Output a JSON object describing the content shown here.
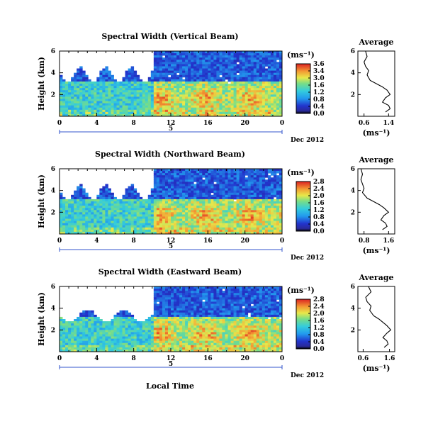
{
  "figure": {
    "xlabel": "Local Time",
    "date_label": "Dec 2012",
    "day_marker": "5"
  },
  "colorbar_unit": "(ms⁻¹)",
  "average_unit": "(ms⁻¹)",
  "average_title": "Average",
  "colors": {
    "map_low": "#2233cc",
    "map_mid": "#33ccdd",
    "map_high_mid": "#e8e84a",
    "map_high": "#dd2222",
    "marker_line": "#3355cc"
  },
  "chart_data": [
    {
      "type": "heatmap",
      "title": "Spectral Width (Vertical Beam)",
      "ylabel": "Height (km)",
      "xlabel": "",
      "x_ticks": [
        "0",
        "4",
        "8",
        "12",
        "16",
        "20",
        "0"
      ],
      "y_ticks": [
        "6",
        "4",
        "2"
      ],
      "x_range_hours": [
        0,
        24
      ],
      "y_range_km": [
        0,
        6
      ],
      "colorbar_ticks": [
        "3.6",
        "3.4",
        "3.0",
        "1.6",
        "1.2",
        "0.8",
        "0.4",
        "0.0"
      ],
      "colorbar_range": [
        0.0,
        3.6
      ],
      "description_levels": {
        "upper_region_max_height_km": 4.5,
        "peak_values": [
          3.2,
          3.4
        ]
      }
    },
    {
      "type": "heatmap",
      "title": "Spectral Width (Northward Beam)",
      "ylabel": "Height (km)",
      "xlabel": "",
      "x_ticks": [
        "0",
        "4",
        "8",
        "12",
        "16",
        "20",
        "0"
      ],
      "y_ticks": [
        "6",
        "4",
        "2"
      ],
      "x_range_hours": [
        0,
        24
      ],
      "y_range_km": [
        0,
        6
      ],
      "colorbar_ticks": [
        "2.8",
        "2.4",
        "2.0",
        "1.6",
        "1.2",
        "0.8",
        "0.4",
        "0.0"
      ],
      "colorbar_range": [
        0.0,
        2.8
      ]
    },
    {
      "type": "heatmap",
      "title": "Spectral Width (Eastward Beam)",
      "ylabel": "Height (km)",
      "xlabel": "Local Time",
      "x_ticks": [
        "0",
        "4",
        "8",
        "12",
        "16",
        "20",
        "0"
      ],
      "y_ticks": [
        "6",
        "4",
        "2"
      ],
      "x_range_hours": [
        0,
        24
      ],
      "y_range_km": [
        0,
        6
      ],
      "colorbar_ticks": [
        "2.8",
        "2.4",
        "2.0",
        "1.6",
        "1.2",
        "0.8",
        "0.4",
        "0.0"
      ],
      "colorbar_range": [
        0.0,
        2.8
      ]
    },
    {
      "type": "line",
      "title": "Average",
      "xlabel": "(ms⁻¹)",
      "x_ticks": [
        "0.6",
        "1.4"
      ],
      "xlim": [
        0.4,
        1.6
      ],
      "y_ticks": [
        "6",
        "4",
        "2"
      ],
      "ylim": [
        0,
        6
      ],
      "series": [
        {
          "x": [
            0.65,
            0.7,
            0.6,
            0.65,
            0.75,
            0.7,
            0.8,
            1.0,
            1.2,
            1.35,
            1.45,
            1.3,
            1.2,
            1.4,
            1.45,
            1.3
          ],
          "y": [
            6.0,
            5.5,
            5.0,
            4.6,
            4.2,
            3.8,
            3.3,
            3.0,
            2.7,
            2.4,
            2.0,
            1.7,
            1.3,
            1.0,
            0.7,
            0.4
          ]
        }
      ]
    },
    {
      "type": "line",
      "title": "Average",
      "xlabel": "(ms⁻¹)",
      "x_ticks": [
        "0.8",
        "1.6"
      ],
      "xlim": [
        0.6,
        1.8
      ],
      "y_ticks": [
        "6",
        "4",
        "2"
      ],
      "ylim": [
        0,
        6
      ],
      "series": [
        {
          "x": [
            0.7,
            0.75,
            0.7,
            0.75,
            0.8,
            0.75,
            0.9,
            1.1,
            1.3,
            1.45,
            1.6,
            1.45,
            1.35,
            1.5,
            1.55,
            1.4
          ],
          "y": [
            6.0,
            5.5,
            5.0,
            4.6,
            4.2,
            3.8,
            3.3,
            3.0,
            2.7,
            2.4,
            2.0,
            1.7,
            1.3,
            1.0,
            0.7,
            0.4
          ]
        }
      ]
    },
    {
      "type": "line",
      "title": "Average",
      "xlabel": "(ms⁻¹)",
      "x_ticks": [
        "0.6",
        "1.6"
      ],
      "xlim": [
        0.4,
        1.8
      ],
      "y_ticks": [
        "6",
        "4",
        "2"
      ],
      "ylim": [
        0,
        6
      ],
      "series": [
        {
          "x": [
            0.8,
            0.9,
            0.7,
            0.75,
            0.9,
            0.85,
            1.0,
            1.2,
            1.35,
            1.5,
            1.65,
            1.5,
            1.35,
            1.5,
            1.55,
            1.4
          ],
          "y": [
            6.0,
            5.5,
            5.0,
            4.6,
            4.2,
            3.8,
            3.3,
            3.0,
            2.7,
            2.4,
            2.0,
            1.7,
            1.3,
            1.0,
            0.7,
            0.4
          ]
        }
      ]
    }
  ]
}
